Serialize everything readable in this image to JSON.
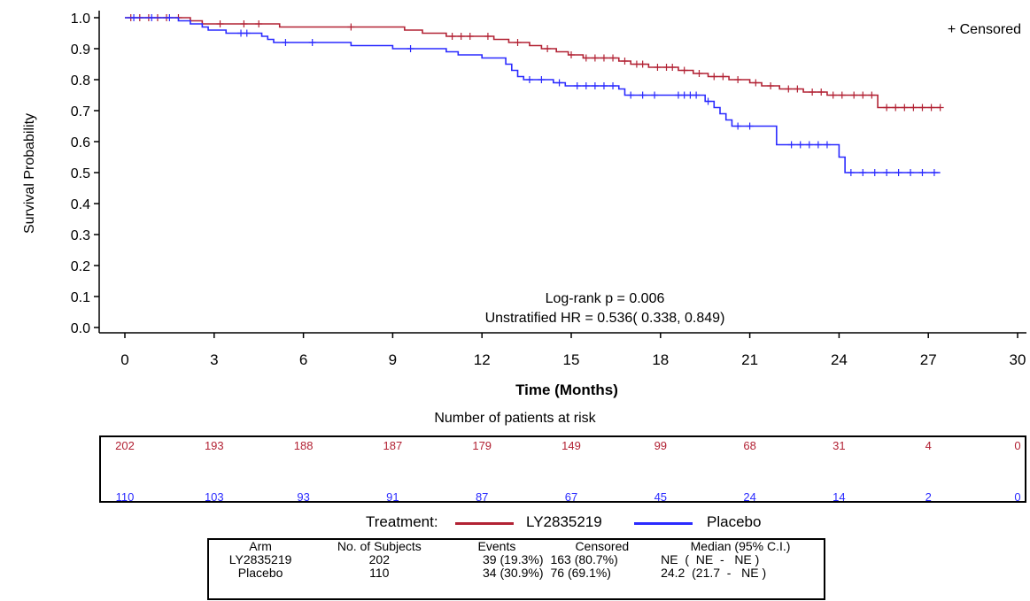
{
  "chart_data": {
    "type": "line",
    "subtype": "kaplan-meier",
    "title": "",
    "xlabel": "Time (Months)",
    "ylabel": "Survival Probability",
    "xlim": [
      0,
      30
    ],
    "ylim": [
      0,
      1
    ],
    "x_ticks": [
      0,
      3,
      6,
      9,
      12,
      15,
      18,
      21,
      24,
      27,
      30
    ],
    "y_ticks": [
      0.0,
      0.1,
      0.2,
      0.3,
      0.4,
      0.5,
      0.6,
      0.7,
      0.8,
      0.9,
      1.0
    ],
    "y_tick_labels": [
      "0.0",
      "0.1",
      "0.2",
      "0.3",
      "0.4",
      "0.5",
      "0.6",
      "0.7",
      "0.8",
      "0.9",
      "1.0"
    ],
    "censor_legend": "+ Censored",
    "annotations": [
      "Log-rank p = 0.006",
      "Unstratified HR = 0.536( 0.338, 0.849)"
    ],
    "series": [
      {
        "name": "LY2835219",
        "color": "#b22234",
        "steps": [
          [
            0,
            1.0
          ],
          [
            2.2,
            0.99
          ],
          [
            2.6,
            0.98
          ],
          [
            5.2,
            0.97
          ],
          [
            9.4,
            0.96
          ],
          [
            10.0,
            0.95
          ],
          [
            10.8,
            0.94
          ],
          [
            12.4,
            0.93
          ],
          [
            12.9,
            0.92
          ],
          [
            13.6,
            0.91
          ],
          [
            14.0,
            0.9
          ],
          [
            14.5,
            0.89
          ],
          [
            14.9,
            0.88
          ],
          [
            15.4,
            0.87
          ],
          [
            16.6,
            0.86
          ],
          [
            17.0,
            0.85
          ],
          [
            17.6,
            0.84
          ],
          [
            18.6,
            0.83
          ],
          [
            19.1,
            0.82
          ],
          [
            19.6,
            0.81
          ],
          [
            20.3,
            0.8
          ],
          [
            21.0,
            0.79
          ],
          [
            21.4,
            0.78
          ],
          [
            22.0,
            0.77
          ],
          [
            22.8,
            0.76
          ],
          [
            23.6,
            0.75
          ],
          [
            25.3,
            0.71
          ],
          [
            27.4,
            0.71
          ]
        ],
        "censors": [
          [
            0.2,
            1.0
          ],
          [
            0.5,
            1.0
          ],
          [
            0.8,
            1.0
          ],
          [
            1.1,
            1.0
          ],
          [
            1.4,
            1.0
          ],
          [
            1.8,
            1.0
          ],
          [
            3.2,
            0.98
          ],
          [
            4.0,
            0.98
          ],
          [
            4.5,
            0.98
          ],
          [
            7.6,
            0.97
          ],
          [
            11.0,
            0.94
          ],
          [
            11.3,
            0.94
          ],
          [
            11.6,
            0.94
          ],
          [
            12.2,
            0.94
          ],
          [
            13.2,
            0.92
          ],
          [
            14.2,
            0.9
          ],
          [
            15.0,
            0.88
          ],
          [
            15.5,
            0.87
          ],
          [
            15.8,
            0.87
          ],
          [
            16.1,
            0.87
          ],
          [
            16.4,
            0.87
          ],
          [
            16.8,
            0.86
          ],
          [
            17.2,
            0.85
          ],
          [
            17.4,
            0.85
          ],
          [
            17.9,
            0.84
          ],
          [
            18.2,
            0.84
          ],
          [
            18.4,
            0.84
          ],
          [
            18.8,
            0.83
          ],
          [
            19.3,
            0.82
          ],
          [
            19.8,
            0.81
          ],
          [
            20.1,
            0.81
          ],
          [
            20.6,
            0.8
          ],
          [
            21.2,
            0.79
          ],
          [
            21.7,
            0.78
          ],
          [
            22.3,
            0.77
          ],
          [
            22.6,
            0.77
          ],
          [
            23.1,
            0.76
          ],
          [
            23.4,
            0.76
          ],
          [
            23.8,
            0.75
          ],
          [
            24.1,
            0.75
          ],
          [
            24.5,
            0.75
          ],
          [
            24.8,
            0.75
          ],
          [
            25.1,
            0.75
          ],
          [
            25.6,
            0.71
          ],
          [
            25.9,
            0.71
          ],
          [
            26.2,
            0.71
          ],
          [
            26.5,
            0.71
          ],
          [
            26.8,
            0.71
          ],
          [
            27.1,
            0.71
          ],
          [
            27.4,
            0.71
          ]
        ]
      },
      {
        "name": "Placebo",
        "color": "#2a2aff",
        "steps": [
          [
            0,
            1.0
          ],
          [
            1.8,
            0.99
          ],
          [
            2.2,
            0.98
          ],
          [
            2.6,
            0.97
          ],
          [
            2.8,
            0.96
          ],
          [
            3.4,
            0.95
          ],
          [
            4.6,
            0.94
          ],
          [
            4.8,
            0.93
          ],
          [
            5.0,
            0.92
          ],
          [
            7.6,
            0.91
          ],
          [
            9.0,
            0.9
          ],
          [
            10.8,
            0.89
          ],
          [
            11.2,
            0.88
          ],
          [
            12.0,
            0.87
          ],
          [
            12.8,
            0.85
          ],
          [
            13.0,
            0.83
          ],
          [
            13.2,
            0.81
          ],
          [
            13.4,
            0.8
          ],
          [
            14.4,
            0.79
          ],
          [
            14.8,
            0.78
          ],
          [
            16.6,
            0.77
          ],
          [
            16.8,
            0.75
          ],
          [
            19.5,
            0.73
          ],
          [
            19.8,
            0.71
          ],
          [
            20.0,
            0.69
          ],
          [
            20.2,
            0.67
          ],
          [
            20.4,
            0.65
          ],
          [
            21.9,
            0.59
          ],
          [
            24.0,
            0.55
          ],
          [
            24.2,
            0.5
          ],
          [
            27.4,
            0.5
          ]
        ],
        "censors": [
          [
            0.3,
            1.0
          ],
          [
            0.9,
            1.0
          ],
          [
            1.5,
            1.0
          ],
          [
            3.9,
            0.95
          ],
          [
            4.1,
            0.95
          ],
          [
            5.4,
            0.92
          ],
          [
            6.3,
            0.92
          ],
          [
            9.6,
            0.9
          ],
          [
            13.6,
            0.8
          ],
          [
            14.0,
            0.8
          ],
          [
            14.6,
            0.79
          ],
          [
            15.2,
            0.78
          ],
          [
            15.5,
            0.78
          ],
          [
            15.8,
            0.78
          ],
          [
            16.1,
            0.78
          ],
          [
            16.4,
            0.78
          ],
          [
            17.0,
            0.75
          ],
          [
            17.4,
            0.75
          ],
          [
            17.8,
            0.75
          ],
          [
            18.6,
            0.75
          ],
          [
            18.8,
            0.75
          ],
          [
            19.0,
            0.75
          ],
          [
            19.2,
            0.75
          ],
          [
            19.6,
            0.73
          ],
          [
            20.6,
            0.65
          ],
          [
            21.0,
            0.65
          ],
          [
            22.4,
            0.59
          ],
          [
            22.7,
            0.59
          ],
          [
            23.0,
            0.59
          ],
          [
            23.3,
            0.59
          ],
          [
            23.6,
            0.59
          ],
          [
            24.4,
            0.5
          ],
          [
            24.8,
            0.5
          ],
          [
            25.2,
            0.5
          ],
          [
            25.6,
            0.5
          ],
          [
            26.0,
            0.5
          ],
          [
            26.4,
            0.5
          ],
          [
            26.8,
            0.5
          ],
          [
            27.2,
            0.5
          ]
        ]
      }
    ]
  },
  "risk_table": {
    "title": "Number of patients at risk",
    "times": [
      0,
      3,
      6,
      9,
      12,
      15,
      18,
      21,
      24,
      27,
      30
    ],
    "rows": [
      {
        "name": "LY2835219",
        "color": "#b22234",
        "values": [
          "202",
          "193",
          "188",
          "187",
          "179",
          "149",
          "99",
          "68",
          "31",
          "4",
          "0"
        ]
      },
      {
        "name": "Placebo",
        "color": "#2a2aff",
        "values": [
          "110",
          "103",
          "93",
          "91",
          "87",
          "67",
          "45",
          "24",
          "14",
          "2",
          "0"
        ]
      }
    ]
  },
  "legend": {
    "label": "Treatment:",
    "items": [
      {
        "name": "LY2835219",
        "color": "#b22234"
      },
      {
        "name": "Placebo",
        "color": "#2a2aff"
      }
    ]
  },
  "summary_table": {
    "headers": [
      "Arm",
      "No. of Subjects",
      "Events",
      "Censored",
      "Median (95% C.I.)"
    ],
    "rows": [
      [
        "LY2835219",
        "202",
        "39 (19.3%)",
        "163 (80.7%)",
        "NE  (  NE  -   NE )"
      ],
      [
        "Placebo",
        "110",
        "34 (30.9%)",
        "76 (69.1%)",
        "24.2  (21.7  -   NE )"
      ]
    ]
  }
}
